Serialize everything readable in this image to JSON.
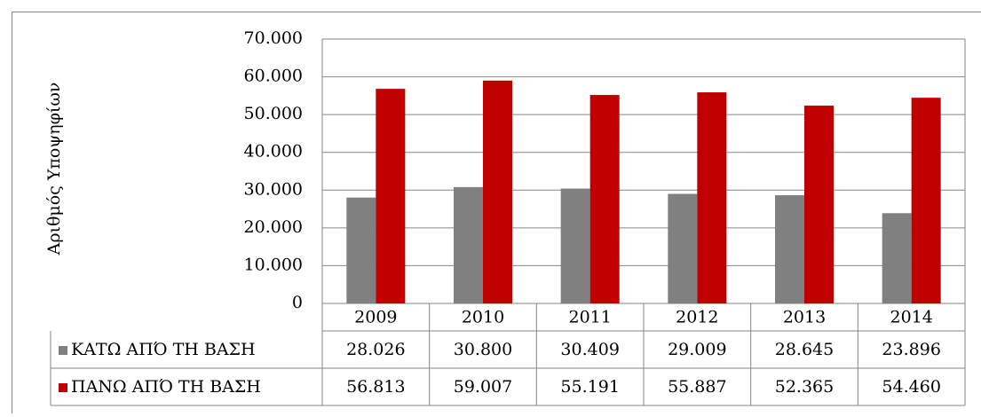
{
  "chart_data": {
    "type": "bar",
    "y_axis_title": "Αριθμός Υποψηφίων",
    "categories": [
      "2009",
      "2010",
      "2011",
      "2012",
      "2013",
      "2014"
    ],
    "series": [
      {
        "name": "ΚΑΤΩ ΑΠΌ ΤΗ ΒΑΣΗ",
        "color": "#808080",
        "values": [
          28026,
          30800,
          30409,
          29009,
          28645,
          23896
        ],
        "value_labels": [
          "28.026",
          "30.800",
          "30.409",
          "29.009",
          "28.645",
          "23.896"
        ]
      },
      {
        "name": "ΠΑΝΩ ΑΠΌ ΤΗ ΒΑΣΗ",
        "color": "#c00000",
        "values": [
          56813,
          59007,
          55191,
          55887,
          52365,
          54460
        ],
        "value_labels": [
          "56.813",
          "59.007",
          "55.191",
          "55.887",
          "52.365",
          "54.460"
        ]
      }
    ],
    "ylim": [
      0,
      70000
    ],
    "yticks": [
      0,
      {
        "value": 10000,
        "label": "10.000"
      },
      {
        "value": 20000,
        "label": "20.000"
      },
      {
        "value": 30000,
        "label": "30.000"
      },
      {
        "value": 40000,
        "label": "40.000"
      },
      {
        "value": 50000,
        "label": "50.000"
      },
      {
        "value": 60000,
        "label": "60.000"
      },
      {
        "value": 70000,
        "label": "70.000"
      }
    ],
    "grid": true
  }
}
